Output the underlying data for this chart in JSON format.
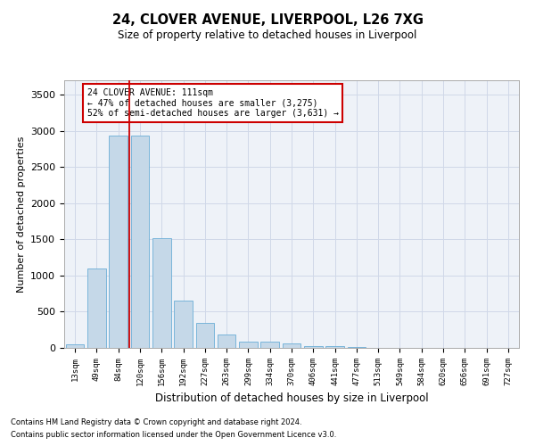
{
  "title1": "24, CLOVER AVENUE, LIVERPOOL, L26 7XG",
  "title2": "Size of property relative to detached houses in Liverpool",
  "xlabel": "Distribution of detached houses by size in Liverpool",
  "ylabel": "Number of detached properties",
  "footnote1": "Contains HM Land Registry data © Crown copyright and database right 2024.",
  "footnote2": "Contains public sector information licensed under the Open Government Licence v3.0.",
  "bar_labels": [
    "13sqm",
    "49sqm",
    "84sqm",
    "120sqm",
    "156sqm",
    "192sqm",
    "227sqm",
    "263sqm",
    "299sqm",
    "334sqm",
    "370sqm",
    "406sqm",
    "441sqm",
    "477sqm",
    "513sqm",
    "549sqm",
    "584sqm",
    "620sqm",
    "656sqm",
    "691sqm",
    "727sqm"
  ],
  "bar_values": [
    50,
    1100,
    2940,
    2940,
    1520,
    650,
    340,
    190,
    90,
    90,
    60,
    30,
    25,
    10,
    5,
    5,
    5,
    5,
    5,
    5,
    5
  ],
  "bar_color": "#c5d8e8",
  "bar_edge_color": "#6baed6",
  "grid_color": "#d0d8e8",
  "background_color": "#eef2f8",
  "vline_x": 2.5,
  "vline_color": "#cc0000",
  "annotation_text": "24 CLOVER AVENUE: 111sqm\n← 47% of detached houses are smaller (3,275)\n52% of semi-detached houses are larger (3,631) →",
  "annotation_box_color": "#cc0000",
  "ylim": [
    0,
    3700
  ],
  "yticks": [
    0,
    500,
    1000,
    1500,
    2000,
    2500,
    3000,
    3500
  ],
  "figsize": [
    6.0,
    5.0
  ],
  "dpi": 100
}
